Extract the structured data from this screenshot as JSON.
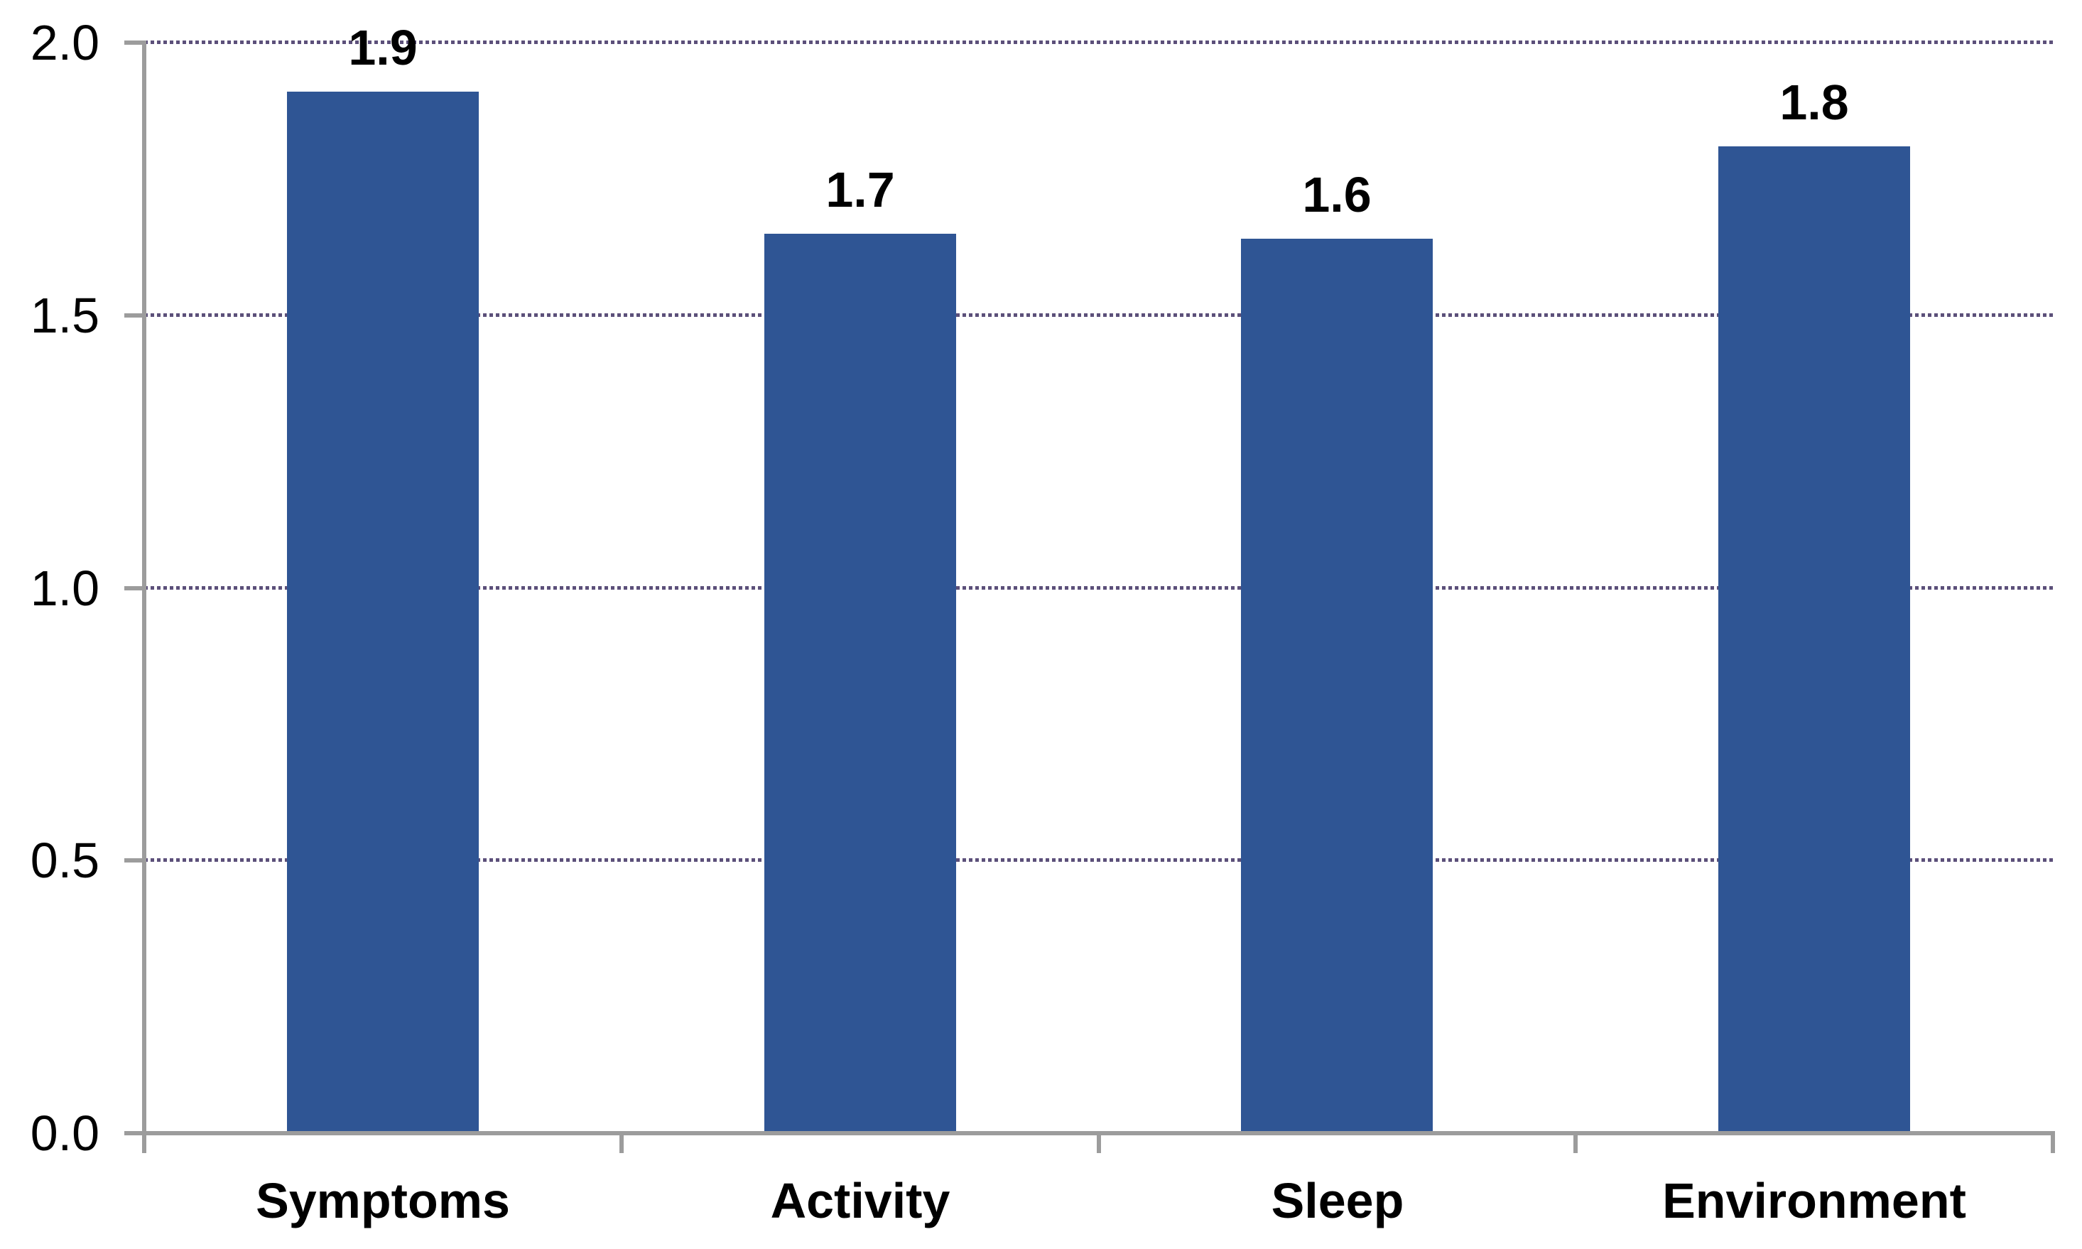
{
  "chart_data": {
    "type": "bar",
    "title": "",
    "xlabel": "",
    "ylabel": "",
    "categories": [
      "Symptoms",
      "Activity",
      "Sleep",
      "Environment"
    ],
    "series": [
      {
        "name": "",
        "values": [
          1.9,
          1.7,
          1.6,
          1.8
        ],
        "data_labels": [
          "1.9",
          "1.7",
          "1.6",
          "1.8"
        ],
        "bar_heights_as_drawn": [
          1.91,
          1.65,
          1.64,
          1.81
        ]
      }
    ],
    "ylim": [
      0.0,
      2.0
    ],
    "ytick_labels": [
      "0.0",
      "0.5",
      "1.0",
      "1.5",
      "2.0"
    ],
    "grid": "horizontal dotted gridlines at 0.5 intervals, none at 0.0",
    "legend": "none",
    "colors": {
      "bar": "#2F5594",
      "gridline": "#5C507A",
      "axis": "#9C9C9C",
      "text": "#000000",
      "background": "#FFFFFF"
    }
  }
}
